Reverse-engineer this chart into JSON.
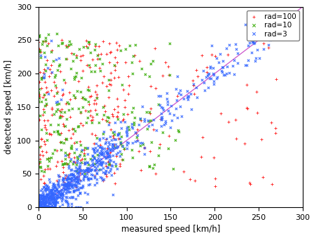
{
  "xlabel": "measured speed [km/h]",
  "ylabel": "detected speed [km/h]",
  "xlim": [
    0,
    300
  ],
  "ylim": [
    0,
    300
  ],
  "xticks": [
    0,
    50,
    100,
    150,
    200,
    250,
    300
  ],
  "yticks": [
    0,
    50,
    100,
    150,
    200,
    250,
    300
  ],
  "line_color": "#cc55cc",
  "series": [
    {
      "label": "rad=100",
      "color": "#ff3333",
      "marker": "+"
    },
    {
      "label": "rad=10",
      "color": "#33aa00",
      "marker": "x"
    },
    {
      "label": "rad=3",
      "color": "#3366ff",
      "marker": "x"
    }
  ],
  "background_color": "#ffffff",
  "figsize": [
    4.48,
    3.4
  ],
  "dpi": 100
}
